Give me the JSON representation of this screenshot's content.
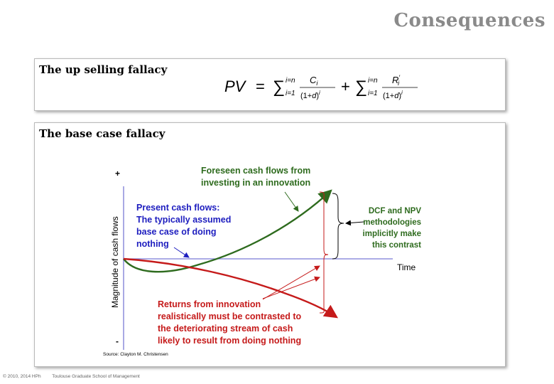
{
  "slide": {
    "title": "Consequences",
    "footer_left": "© 2010, 2014 HPh",
    "footer_right": "Toulouse Graduate School of Management"
  },
  "box1": {
    "label": "The up selling fallacy",
    "formula": "PV = Σ_{i=1}^{i=n} C_i/(1+d)^i + Σ_{i=1}^{i=n} R'_i/(1+d)^i"
  },
  "box2": {
    "label": "The base case fallacy",
    "diagram": {
      "y_axis_label": "Magnitude of cash flows",
      "y_plus": "+",
      "y_minus": "-",
      "x_axis_label": "Time",
      "present_lines": [
        "Present cash flows:",
        "The typically assumed",
        "base case of doing",
        "nothing"
      ],
      "foreseen_lines": [
        "Foreseen cash flows from",
        "investing in an innovation"
      ],
      "dcf_lines": [
        "DCF and NPV",
        "methodologies",
        "implicitly make",
        "this contrast"
      ],
      "returns_lines": [
        "Returns from innovation",
        "realistically must be contrasted to",
        "the deteriorating stream of cash",
        "likely to result from doing nothing"
      ],
      "source": "Source: Clayton M. Christensen",
      "colors": {
        "green": "#2e6b1e",
        "red": "#c51a1a",
        "blue": "#1d1dbf",
        "axis": "#7b7bd6"
      }
    }
  }
}
